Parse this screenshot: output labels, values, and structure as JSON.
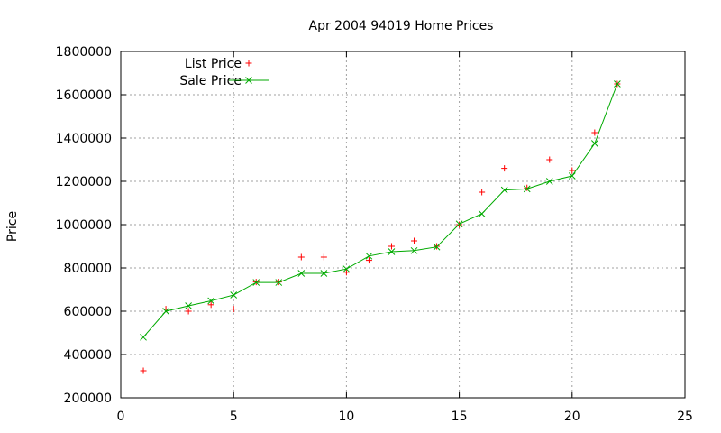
{
  "chart_data": {
    "type": "scatter",
    "title": "Apr 2004 94019 Home Prices",
    "xlabel": "",
    "ylabel": "Price",
    "xlim": [
      0,
      25
    ],
    "ylim": [
      200000,
      1800000
    ],
    "x_ticks": [
      "0",
      "5",
      "10",
      "15",
      "20",
      "25"
    ],
    "y_ticks": [
      "200000",
      "400000",
      "600000",
      "800000",
      "1000000",
      "1200000",
      "1400000",
      "1600000",
      "1800000"
    ],
    "grid": true,
    "legend_position": "top-left",
    "series": [
      {
        "name": "List Price",
        "style": "points",
        "marker": "plus",
        "color": "#ff0000",
        "x": [
          1,
          2,
          3,
          4,
          5,
          6,
          7,
          8,
          9,
          10,
          11,
          12,
          13,
          14,
          15,
          16,
          17,
          18,
          19,
          20,
          21,
          22
        ],
        "y": [
          325000,
          610000,
          600000,
          630000,
          610000,
          735000,
          735000,
          850000,
          850000,
          780000,
          835000,
          900000,
          925000,
          900000,
          1000000,
          1150000,
          1260000,
          1170000,
          1300000,
          1250000,
          1425000,
          1650000
        ]
      },
      {
        "name": "Sale Price",
        "style": "linespoints",
        "marker": "cross",
        "color": "#00aa00",
        "x": [
          1,
          2,
          3,
          4,
          5,
          6,
          7,
          8,
          9,
          10,
          11,
          12,
          13,
          14,
          15,
          16,
          17,
          18,
          19,
          20,
          21,
          22
        ],
        "y": [
          480000,
          600000,
          625000,
          648000,
          675000,
          733000,
          733000,
          775000,
          775000,
          795000,
          855000,
          875000,
          880000,
          897000,
          1003000,
          1050000,
          1160000,
          1165000,
          1200000,
          1225000,
          1375000,
          1650000
        ]
      }
    ]
  }
}
